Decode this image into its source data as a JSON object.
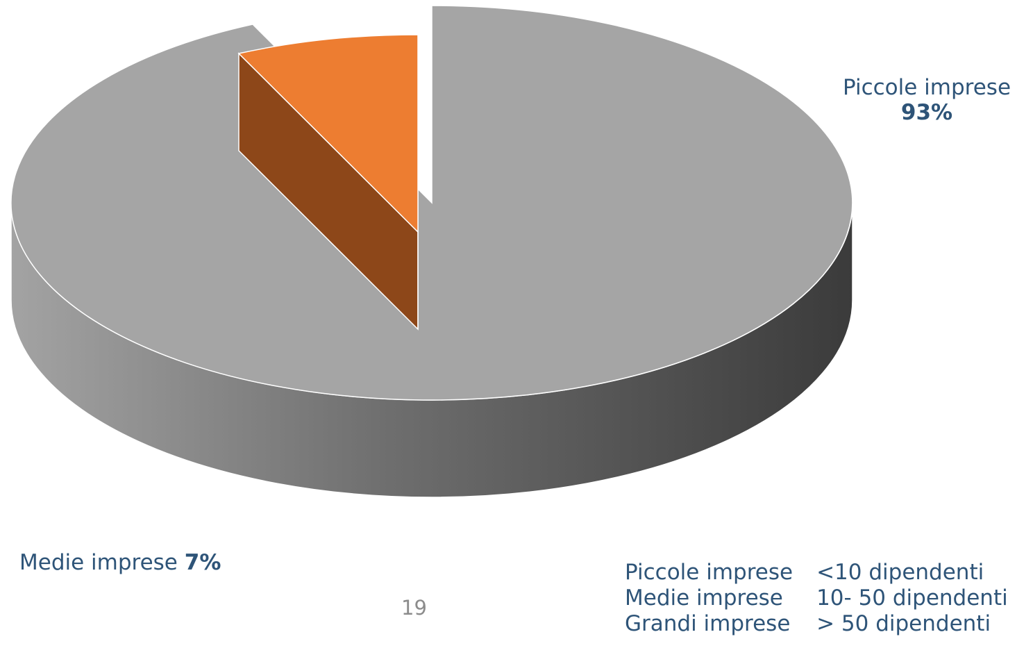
{
  "chart_data": {
    "type": "pie",
    "style": "3d-exploded",
    "slices": [
      {
        "name": "Piccole imprese",
        "label": "93%",
        "value": 93,
        "color": "#a5a5a5"
      },
      {
        "name": "Medie imprese",
        "label": "7%",
        "value": 7,
        "color": "#ed7d31"
      }
    ],
    "label_color": "#2e5478"
  },
  "size_legend": [
    {
      "class": "Piccole imprese",
      "range": "<10 dipendenti"
    },
    {
      "class": "Medie imprese",
      "range": "10- 50 dipendenti"
    },
    {
      "class": "Grandi imprese",
      "range": "> 50 dipendenti"
    }
  ],
  "page_number": "19"
}
